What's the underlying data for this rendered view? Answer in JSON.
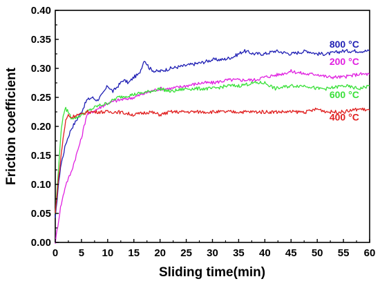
{
  "chart_data": {
    "type": "line",
    "xlabel": "Sliding time(min)",
    "ylabel": "Friction coefficient",
    "xlim": [
      0,
      60
    ],
    "ylim": [
      0,
      0.4
    ],
    "xticks": [
      "0",
      "5",
      "10",
      "15",
      "20",
      "25",
      "30",
      "35",
      "40",
      "45",
      "50",
      "55",
      "60"
    ],
    "yticks": [
      "0.00",
      "0.05",
      "0.10",
      "0.15",
      "0.20",
      "0.25",
      "0.30",
      "0.35",
      "0.40"
    ],
    "grid": false,
    "legend_placement": "inline-right",
    "series": [
      {
        "name": "800 °C",
        "color": "#1f1fb4",
        "x": [
          0,
          0.5,
          1,
          2,
          3,
          4,
          5,
          6,
          7,
          8,
          9,
          10,
          11,
          12,
          13,
          14,
          15,
          16,
          17,
          18,
          19,
          20,
          22,
          25,
          28,
          30,
          32,
          34,
          36,
          38,
          40,
          42,
          45,
          48,
          50,
          52,
          55,
          58,
          60
        ],
        "y": [
          0.04,
          0.09,
          0.13,
          0.17,
          0.195,
          0.21,
          0.225,
          0.245,
          0.25,
          0.245,
          0.255,
          0.27,
          0.26,
          0.27,
          0.28,
          0.275,
          0.285,
          0.29,
          0.315,
          0.3,
          0.295,
          0.295,
          0.3,
          0.305,
          0.31,
          0.315,
          0.315,
          0.32,
          0.33,
          0.325,
          0.325,
          0.33,
          0.325,
          0.33,
          0.325,
          0.325,
          0.33,
          0.33,
          0.33
        ]
      },
      {
        "name": "200 °C",
        "color": "#e020e0",
        "x": [
          0,
          0.5,
          1,
          2,
          3,
          4,
          5,
          6,
          7,
          8,
          10,
          12,
          15,
          18,
          20,
          22,
          25,
          28,
          30,
          33,
          35,
          38,
          40,
          43,
          45,
          48,
          50,
          52,
          55,
          58,
          60
        ],
        "y": [
          0.0,
          0.03,
          0.06,
          0.1,
          0.12,
          0.15,
          0.18,
          0.22,
          0.225,
          0.23,
          0.24,
          0.245,
          0.25,
          0.26,
          0.265,
          0.265,
          0.27,
          0.275,
          0.275,
          0.28,
          0.28,
          0.28,
          0.285,
          0.29,
          0.295,
          0.29,
          0.29,
          0.285,
          0.285,
          0.29,
          0.29
        ]
      },
      {
        "name": "600 °C",
        "color": "#3ae03a",
        "x": [
          0,
          0.5,
          1,
          1.5,
          2,
          2.5,
          3,
          4,
          5,
          6,
          8,
          10,
          12,
          15,
          18,
          20,
          22,
          25,
          28,
          30,
          33,
          35,
          38,
          40,
          42,
          45,
          48,
          50,
          52,
          55,
          58,
          60
        ],
        "y": [
          0.05,
          0.11,
          0.18,
          0.22,
          0.23,
          0.225,
          0.215,
          0.215,
          0.22,
          0.225,
          0.235,
          0.24,
          0.25,
          0.255,
          0.26,
          0.265,
          0.26,
          0.265,
          0.265,
          0.265,
          0.27,
          0.27,
          0.275,
          0.275,
          0.265,
          0.27,
          0.27,
          0.265,
          0.265,
          0.27,
          0.265,
          0.27
        ]
      },
      {
        "name": "400 °C",
        "color": "#e02020",
        "x": [
          0,
          0.5,
          1,
          1.5,
          2,
          2.5,
          3,
          4,
          5,
          6,
          8,
          10,
          12,
          15,
          18,
          20,
          22,
          25,
          28,
          30,
          33,
          35,
          38,
          40,
          42,
          45,
          48,
          50,
          52,
          55,
          58,
          60
        ],
        "y": [
          0.05,
          0.1,
          0.14,
          0.18,
          0.21,
          0.22,
          0.215,
          0.22,
          0.22,
          0.225,
          0.225,
          0.225,
          0.225,
          0.22,
          0.225,
          0.22,
          0.225,
          0.225,
          0.225,
          0.225,
          0.225,
          0.225,
          0.225,
          0.225,
          0.225,
          0.225,
          0.225,
          0.23,
          0.225,
          0.225,
          0.23,
          0.228
        ]
      }
    ],
    "labels": [
      {
        "text": "800 °C",
        "color": "#1f1fb4",
        "x": 58,
        "y": 0.336
      },
      {
        "text": "200 °C",
        "color": "#e020e0",
        "x": 58,
        "y": 0.306
      },
      {
        "text": "600 °C",
        "color": "#3ae03a",
        "x": 58,
        "y": 0.249
      },
      {
        "text": "400 °C",
        "color": "#e02020",
        "x": 58,
        "y": 0.21
      }
    ]
  }
}
